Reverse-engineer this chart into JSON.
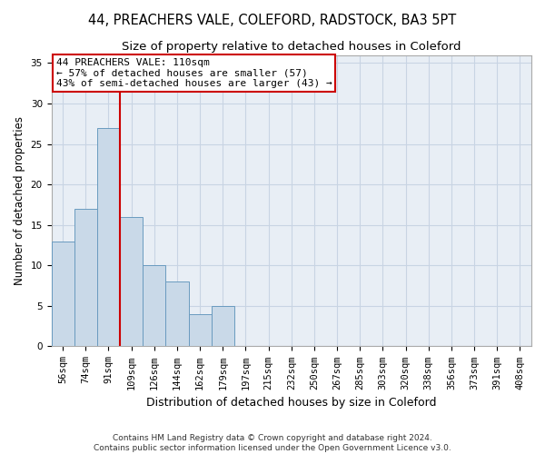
{
  "title_line1": "44, PREACHERS VALE, COLEFORD, RADSTOCK, BA3 5PT",
  "title_line2": "Size of property relative to detached houses in Coleford",
  "xlabel": "Distribution of detached houses by size in Coleford",
  "ylabel": "Number of detached properties",
  "categories": [
    "56sqm",
    "74sqm",
    "91sqm",
    "109sqm",
    "126sqm",
    "144sqm",
    "162sqm",
    "179sqm",
    "197sqm",
    "215sqm",
    "232sqm",
    "250sqm",
    "267sqm",
    "285sqm",
    "303sqm",
    "320sqm",
    "338sqm",
    "356sqm",
    "373sqm",
    "391sqm",
    "408sqm"
  ],
  "values": [
    13,
    17,
    27,
    16,
    10,
    8,
    4,
    5,
    0,
    0,
    0,
    0,
    0,
    0,
    0,
    0,
    0,
    0,
    0,
    0,
    0
  ],
  "bar_color": "#c9d9e8",
  "bar_edge_color": "#6a9bbf",
  "grid_color": "#c8d4e3",
  "background_color": "#e8eef5",
  "annotation_line1": "44 PREACHERS VALE: 110sqm",
  "annotation_line2": "← 57% of detached houses are smaller (57)",
  "annotation_line3": "43% of semi-detached houses are larger (43) →",
  "annotation_box_color": "#ffffff",
  "annotation_box_edge_color": "#cc0000",
  "red_line_x": 2.5,
  "ylim": [
    0,
    36
  ],
  "yticks": [
    0,
    5,
    10,
    15,
    20,
    25,
    30,
    35
  ],
  "footer": "Contains HM Land Registry data © Crown copyright and database right 2024.\nContains public sector information licensed under the Open Government Licence v3.0.",
  "title_fontsize": 10.5,
  "subtitle_fontsize": 9.5,
  "axis_label_fontsize": 8.5,
  "tick_fontsize": 7.5,
  "annotation_fontsize": 8,
  "footer_fontsize": 6.5
}
